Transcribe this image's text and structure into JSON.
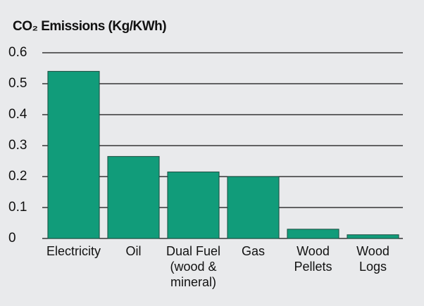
{
  "chart_data": {
    "type": "bar",
    "title": "CO₂ Emissions (Kg/KWh)",
    "categories": [
      "Electricity",
      "Oil",
      "Dual Fuel (wood & mineral)",
      "Gas",
      "Wood Pellets",
      "Wood Logs"
    ],
    "values": [
      0.54,
      0.265,
      0.215,
      0.2,
      0.03,
      0.012
    ],
    "color": "#119c7a",
    "ylim": [
      0,
      0.6
    ],
    "yticks": [
      0,
      0.1,
      0.2,
      0.3,
      0.4,
      0.5,
      0.6
    ],
    "grid": true
  }
}
